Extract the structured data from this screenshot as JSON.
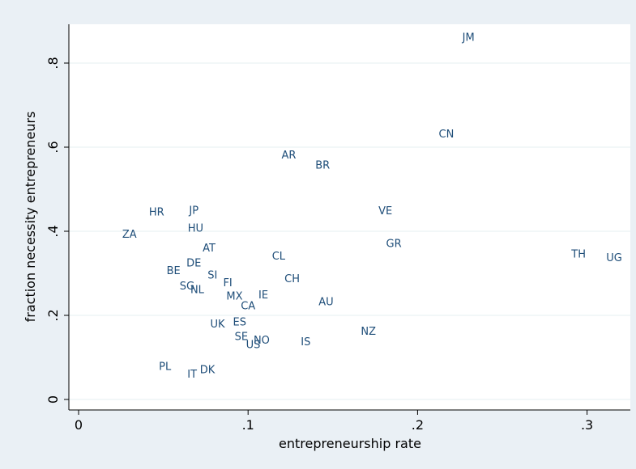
{
  "chart_data": {
    "type": "scatter",
    "title": "",
    "xlabel": "entrepreneurship rate",
    "ylabel": "fraction necessity entrepreneurs",
    "xlim": [
      0,
      0.32
    ],
    "ylim": [
      0,
      0.86
    ],
    "grid": true,
    "x_ticks": [
      {
        "value": 0,
        "label": "0"
      },
      {
        "value": 0.1,
        "label": ".1"
      },
      {
        "value": 0.2,
        "label": ".2"
      },
      {
        "value": 0.3,
        "label": ".3"
      }
    ],
    "y_ticks": [
      {
        "value": 0,
        "label": "0"
      },
      {
        "value": 0.2,
        "label": ".2"
      },
      {
        "value": 0.4,
        "label": ".4"
      },
      {
        "value": 0.6,
        "label": ".6"
      },
      {
        "value": 0.8,
        "label": ".8"
      }
    ],
    "points": [
      {
        "label": "JM",
        "x": 0.23,
        "y": 0.86
      },
      {
        "label": "CN",
        "x": 0.217,
        "y": 0.63
      },
      {
        "label": "AR",
        "x": 0.124,
        "y": 0.58
      },
      {
        "label": "BR",
        "x": 0.144,
        "y": 0.556
      },
      {
        "label": "VE",
        "x": 0.181,
        "y": 0.447
      },
      {
        "label": "HR",
        "x": 0.046,
        "y": 0.444
      },
      {
        "label": "JP",
        "x": 0.068,
        "y": 0.448
      },
      {
        "label": "HU",
        "x": 0.069,
        "y": 0.406
      },
      {
        "label": "ZA",
        "x": 0.03,
        "y": 0.391
      },
      {
        "label": "GR",
        "x": 0.186,
        "y": 0.369
      },
      {
        "label": "TH",
        "x": 0.295,
        "y": 0.344
      },
      {
        "label": "UG",
        "x": 0.316,
        "y": 0.336
      },
      {
        "label": "AT",
        "x": 0.077,
        "y": 0.359
      },
      {
        "label": "CL",
        "x": 0.118,
        "y": 0.339
      },
      {
        "label": "DE",
        "x": 0.068,
        "y": 0.323
      },
      {
        "label": "BE",
        "x": 0.056,
        "y": 0.305
      },
      {
        "label": "SI",
        "x": 0.079,
        "y": 0.294
      },
      {
        "label": "CH",
        "x": 0.126,
        "y": 0.286
      },
      {
        "label": "FI",
        "x": 0.088,
        "y": 0.276
      },
      {
        "label": "SG",
        "x": 0.064,
        "y": 0.268
      },
      {
        "label": "NL",
        "x": 0.07,
        "y": 0.26
      },
      {
        "label": "MX",
        "x": 0.092,
        "y": 0.244
      },
      {
        "label": "IE",
        "x": 0.109,
        "y": 0.247
      },
      {
        "label": "AU",
        "x": 0.146,
        "y": 0.231
      },
      {
        "label": "CA",
        "x": 0.1,
        "y": 0.221
      },
      {
        "label": "ES",
        "x": 0.095,
        "y": 0.183
      },
      {
        "label": "UK",
        "x": 0.082,
        "y": 0.178
      },
      {
        "label": "NZ",
        "x": 0.171,
        "y": 0.161
      },
      {
        "label": "SE",
        "x": 0.096,
        "y": 0.148
      },
      {
        "label": "NO",
        "x": 0.108,
        "y": 0.139
      },
      {
        "label": "US",
        "x": 0.103,
        "y": 0.129
      },
      {
        "label": "IS",
        "x": 0.134,
        "y": 0.136
      },
      {
        "label": "PL",
        "x": 0.051,
        "y": 0.077
      },
      {
        "label": "DK",
        "x": 0.076,
        "y": 0.069
      },
      {
        "label": "IT",
        "x": 0.067,
        "y": 0.059
      }
    ],
    "colors": {
      "background": "#eaf0f5",
      "plot_area": "#ffffff",
      "grid": "#eaf2f3",
      "marker_labels": "#1f4e79",
      "axis": "#000000"
    }
  }
}
